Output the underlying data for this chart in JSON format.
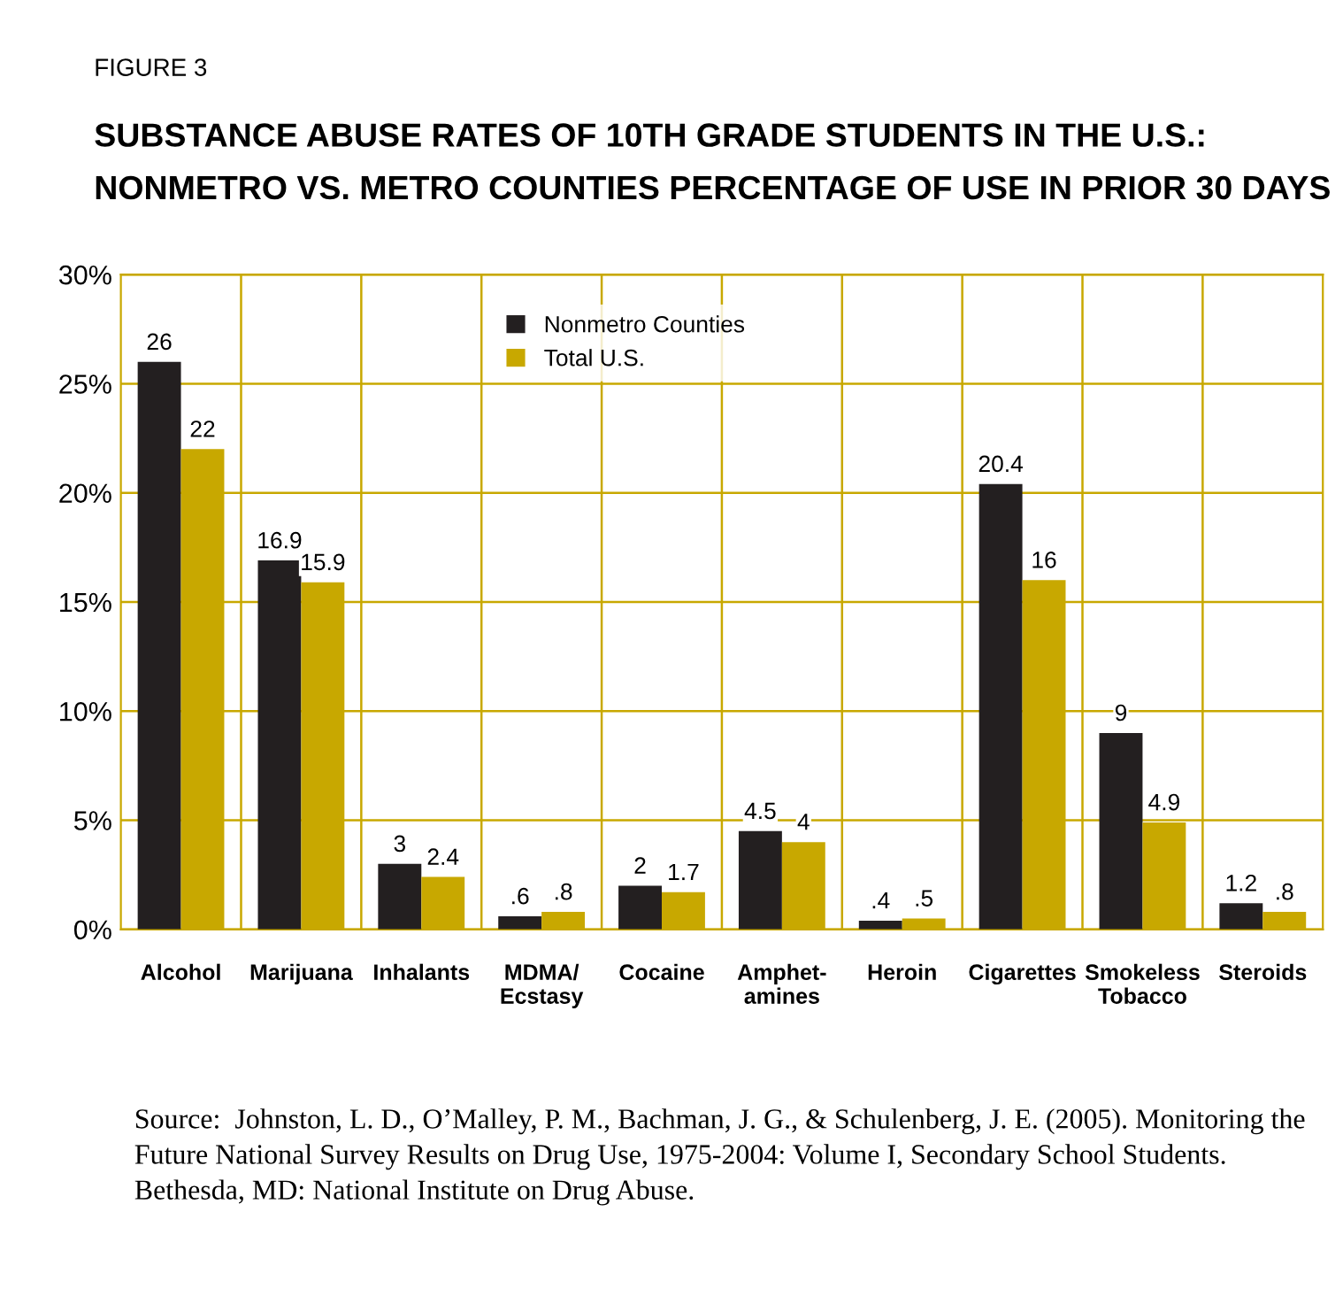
{
  "chart_data": {
    "type": "bar",
    "title": "SUBSTANCE ABUSE RATES OF 10TH GRADE STUDENTS IN THE U.S.:\nNONMETRO VS. METRO COUNTIES PERCENTAGE OF USE IN PRIOR 30 DAYS",
    "categories": [
      "Alcohol",
      "Marijuana",
      "Inhalants",
      "MDMA/\nEcstasy",
      "Cocaine",
      "Amphet-\namines",
      "Heroin",
      "Cigarettes",
      "Smokeless\nTobacco",
      "Steroids"
    ],
    "series": [
      {
        "name": "Nonmetro Counties",
        "color": "#231f20",
        "values": [
          26,
          16.9,
          3,
          0.6,
          2,
          4.5,
          0.4,
          20.4,
          9,
          1.2
        ],
        "value_labels": [
          "26",
          "16.9",
          "3",
          ".6",
          "2",
          "4.5",
          ".4",
          "20.4",
          "9",
          "1.2"
        ]
      },
      {
        "name": "Total U.S.",
        "color": "#c8a800",
        "values": [
          22,
          15.9,
          2.4,
          0.8,
          1.7,
          4,
          0.5,
          16,
          4.9,
          0.8
        ],
        "value_labels": [
          "22",
          "15.9",
          "2.4",
          ".8",
          "1.7",
          "4",
          ".5",
          "16",
          "4.9",
          ".8"
        ]
      }
    ],
    "ylim": [
      0,
      30
    ],
    "yticks": [
      {
        "value": 0,
        "label": "0%"
      },
      {
        "value": 5,
        "label": "5%"
      },
      {
        "value": 10,
        "label": "10%"
      },
      {
        "value": 15,
        "label": "15%"
      },
      {
        "value": 20,
        "label": "20%"
      },
      {
        "value": 25,
        "label": "25%"
      },
      {
        "value": 30,
        "label": "30%"
      }
    ],
    "grid": true,
    "legend": "top",
    "annotations": [
      "FIGURE 3",
      "Source:  Johnston, L. D., O’Malley, P. M., Bachman, J. G., & Schulenberg, J. E. (2005). Monitoring the Future National Survey Results on Drug Use, 1975-2004: Volume I, Secondary School Students. Bethesda, MD: National Institute on Drug Abuse."
    ]
  }
}
